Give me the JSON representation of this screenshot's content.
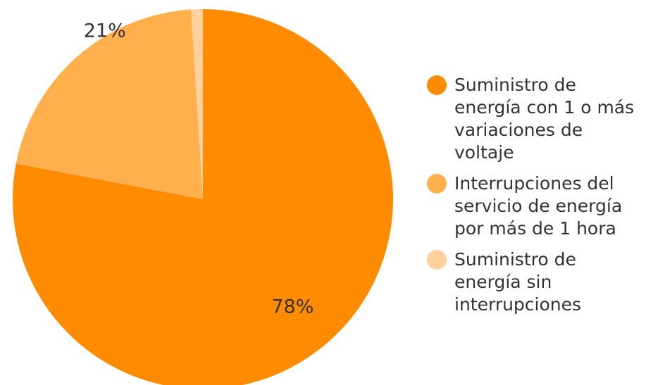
{
  "chart_data": {
    "type": "pie",
    "categories": [
      "Suministro de energía con 1 o más variaciones de voltaje",
      "Interrupciones del servicio de energía por más de 1 hora",
      "Suministro de energía sin interrupciones"
    ],
    "values": [
      78,
      21,
      1
    ],
    "value_labels": [
      "78%",
      "21%",
      null
    ],
    "colors": [
      "#ff8c00",
      "#ffb04c",
      "#ffd09b"
    ],
    "legend": "right"
  }
}
